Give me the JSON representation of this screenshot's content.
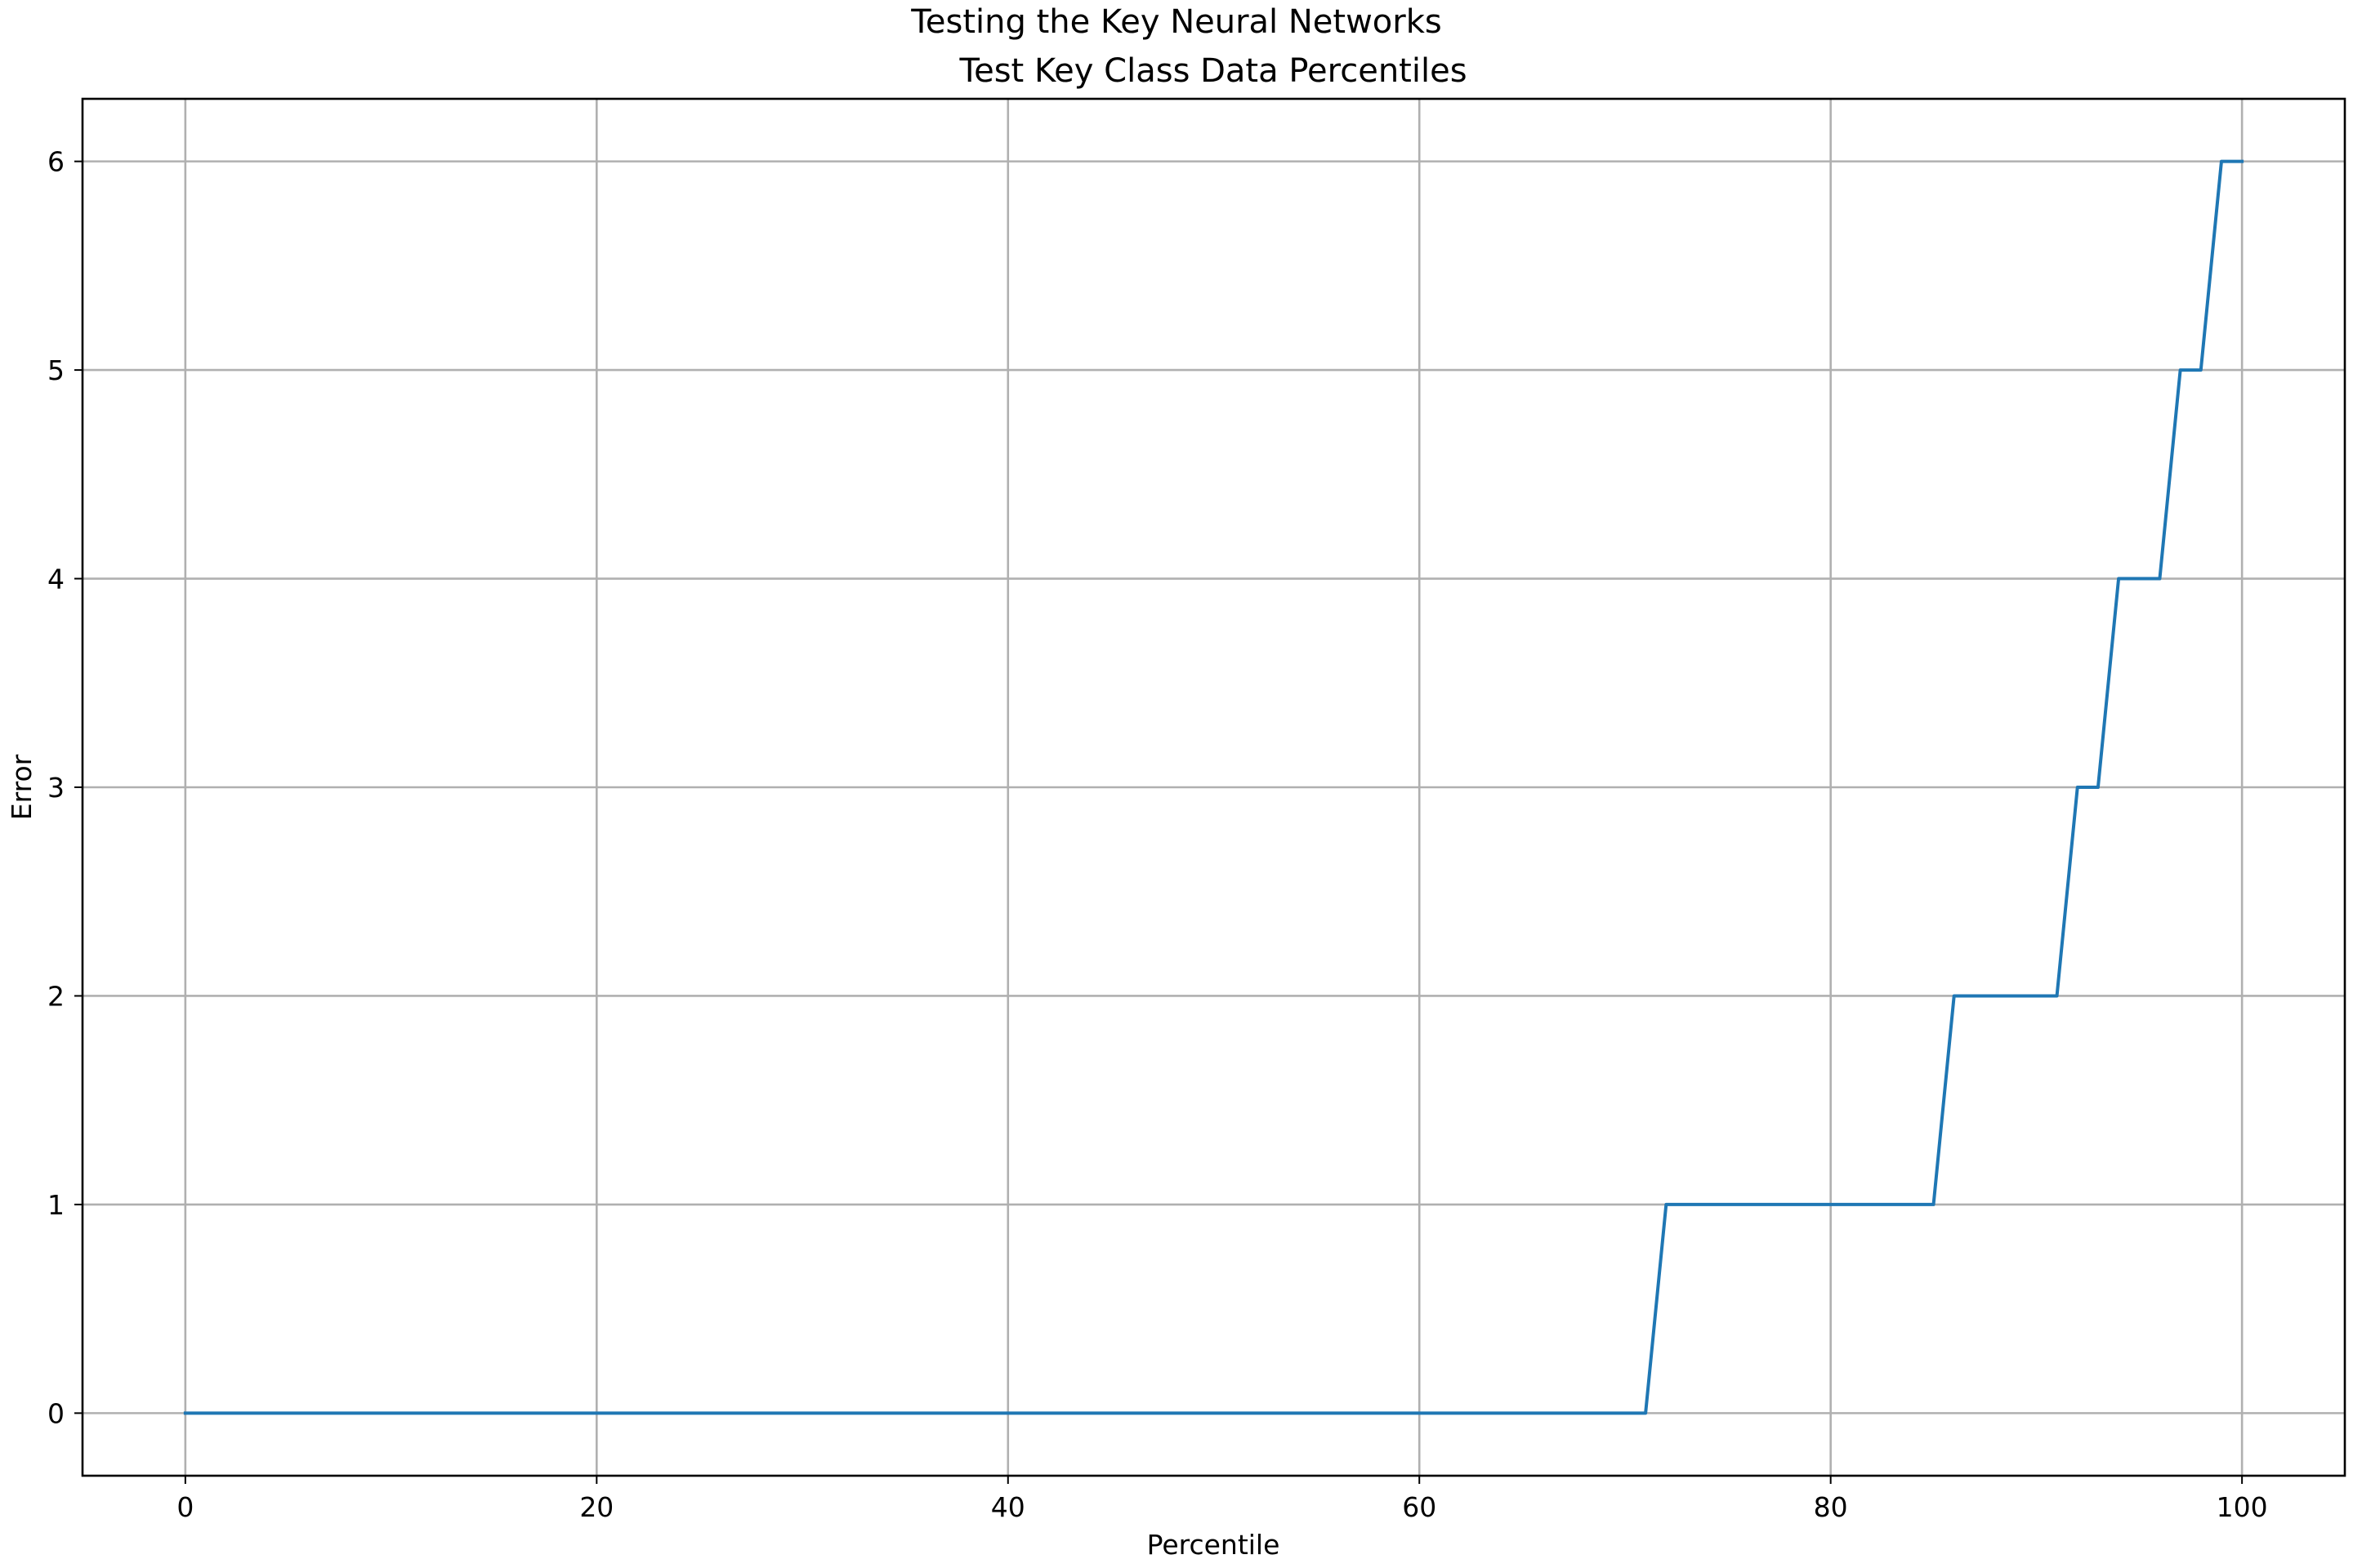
{
  "chart_data": {
    "type": "line",
    "suptitle": "Testing the Key Neural Networks",
    "title": "Test Key Class Data Percentiles",
    "xlabel": "Percentile",
    "ylabel": "Error",
    "xlim": [
      -5,
      105
    ],
    "ylim": [
      -0.3,
      6.3
    ],
    "xticks": [
      0,
      20,
      40,
      60,
      80,
      100
    ],
    "yticks": [
      0,
      1,
      2,
      3,
      4,
      5,
      6
    ],
    "grid": true,
    "series": [
      {
        "color": "#1f77b4",
        "x": [
          0,
          71,
          72,
          85,
          86,
          91,
          92,
          93,
          94,
          96,
          97,
          98,
          99,
          100
        ],
        "y": [
          0,
          0,
          1,
          1,
          2,
          2,
          3,
          3,
          4,
          4,
          5,
          5,
          6,
          6
        ]
      }
    ]
  }
}
